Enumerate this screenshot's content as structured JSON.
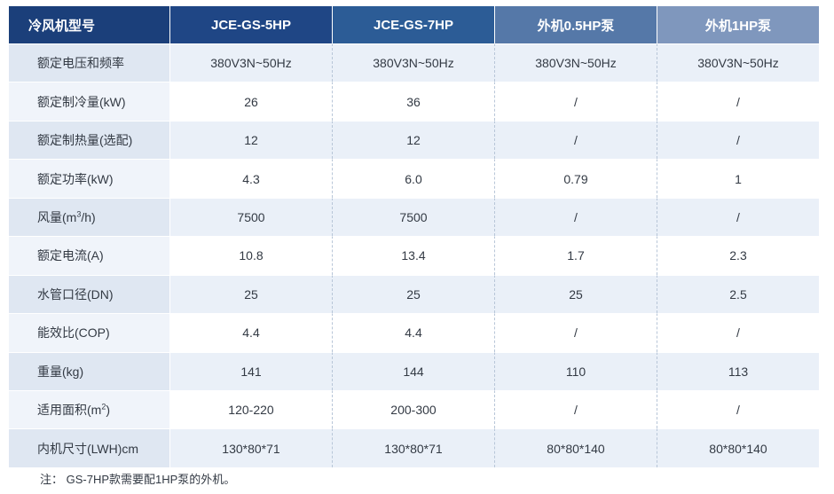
{
  "header": {
    "label": "冷风机型号",
    "columns": [
      "JCE-GS-5HP",
      "JCE-GS-7HP",
      "外机0.5HP泵",
      "外机1HP泵"
    ]
  },
  "rows": [
    {
      "label": "额定电压和频率",
      "values": [
        "380V3N~50Hz",
        "380V3N~50Hz",
        "380V3N~50Hz",
        "380V3N~50Hz"
      ]
    },
    {
      "label": "额定制冷量(kW)",
      "values": [
        "26",
        "36",
        "/",
        "/"
      ]
    },
    {
      "label": "额定制热量(选配)",
      "values": [
        "12",
        "12",
        "/",
        "/"
      ]
    },
    {
      "label": "额定功率(kW)",
      "values": [
        "4.3",
        "6.0",
        "0.79",
        "1"
      ]
    },
    {
      "label_pre": "风量(m",
      "label_sup": "3",
      "label_post": "/h)",
      "values": [
        "7500",
        "7500",
        "/",
        "/"
      ]
    },
    {
      "label": "额定电流(A)",
      "values": [
        "10.8",
        "13.4",
        "1.7",
        "2.3"
      ]
    },
    {
      "label": "水管口径(DN)",
      "values": [
        "25",
        "25",
        "25",
        "2.5"
      ]
    },
    {
      "label": "能效比(COP)",
      "values": [
        "4.4",
        "4.4",
        "/",
        "/"
      ]
    },
    {
      "label": "重量(kg)",
      "values": [
        "141",
        "144",
        "110",
        "113"
      ]
    },
    {
      "label_pre": "适用面积(m",
      "label_sup": "2",
      "label_post": ")",
      "values": [
        "120-220",
        "200-300",
        "/",
        "/"
      ]
    },
    {
      "label": "内机尺寸(LWH)cm",
      "values": [
        "130*80*71",
        "130*80*71",
        "80*80*140",
        "80*80*140"
      ]
    }
  ],
  "note": "注：  GS-7HP款需要配1HP泵的外机。"
}
